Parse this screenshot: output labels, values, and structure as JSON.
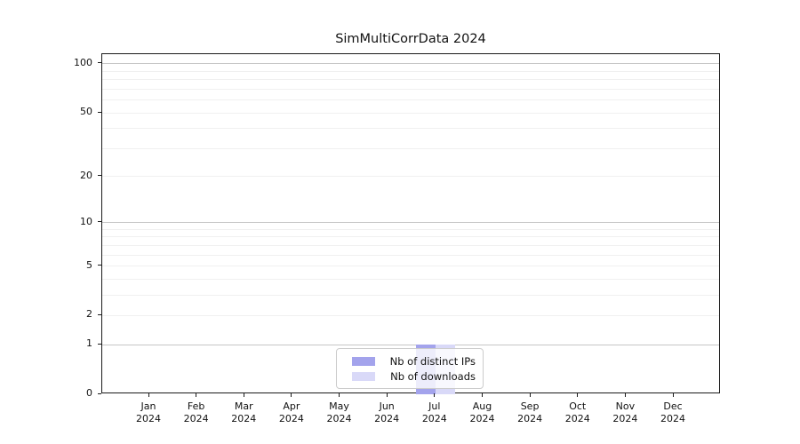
{
  "title": "SimMultiCorrData 2024",
  "chart_data": {
    "type": "bar",
    "title": "SimMultiCorrData 2024",
    "categories": [
      {
        "month": "Jan",
        "year": "2024"
      },
      {
        "month": "Feb",
        "year": "2024"
      },
      {
        "month": "Mar",
        "year": "2024"
      },
      {
        "month": "Apr",
        "year": "2024"
      },
      {
        "month": "May",
        "year": "2024"
      },
      {
        "month": "Jun",
        "year": "2024"
      },
      {
        "month": "Jul",
        "year": "2024"
      },
      {
        "month": "Aug",
        "year": "2024"
      },
      {
        "month": "Sep",
        "year": "2024"
      },
      {
        "month": "Oct",
        "year": "2024"
      },
      {
        "month": "Nov",
        "year": "2024"
      },
      {
        "month": "Dec",
        "year": "2024"
      }
    ],
    "series": [
      {
        "name": "Nb of distinct IPs",
        "color": "#a3a3ec",
        "values": [
          0,
          0,
          0,
          0,
          0,
          0,
          1,
          0,
          0,
          0,
          0,
          0
        ]
      },
      {
        "name": "Nb of downloads",
        "color": "#d9d9f8",
        "values": [
          0,
          0,
          0,
          0,
          0,
          0,
          1,
          0,
          0,
          0,
          0,
          0
        ]
      }
    ],
    "xlabel": "",
    "ylabel": "",
    "yscale": "log1p",
    "ylim": [
      0,
      114.7
    ],
    "yticks": [
      0,
      1,
      2,
      5,
      10,
      20,
      50,
      100
    ],
    "major_gridlines": [
      1,
      10,
      100
    ],
    "minor_gridlines": [
      2,
      3,
      4,
      5,
      6,
      7,
      8,
      9,
      20,
      30,
      40,
      50,
      60,
      70,
      80,
      90
    ],
    "grid": true,
    "legend_position": "lower center"
  },
  "colors": {
    "bar_distinct_ips": "#a3a3ec",
    "bar_downloads": "#d9d9f8",
    "grid_major": "#c6c6c6",
    "grid_minor": "#f0f0f0",
    "axis_spine": "#1a1a1a",
    "legend_border": "#cccccc"
  }
}
